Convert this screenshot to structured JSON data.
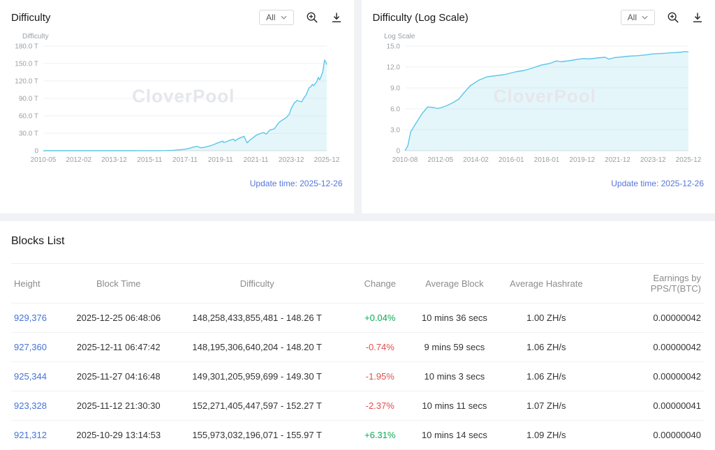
{
  "page": {
    "background_color": "#f0f2f5"
  },
  "colors": {
    "line": "#5cc6e8",
    "area_fill": "rgba(92,198,232,0.16)",
    "link": "#4573d6",
    "positive": "#0bab52",
    "negative": "#e34d4d",
    "update_time": "#5576d9",
    "watermark_color": "#e5e7ea"
  },
  "chart_data": [
    {
      "type": "area",
      "title": "Difficulty",
      "range_selector": "All",
      "ylabel": "Difficulty",
      "watermark": "CloverPool",
      "update_time": "Update time: 2025-12-26",
      "y_max": 180,
      "y_ticks": [
        {
          "v": 0,
          "label": "0"
        },
        {
          "v": 30,
          "label": "30.0 T"
        },
        {
          "v": 60,
          "label": "60.0 T"
        },
        {
          "v": 90,
          "label": "90.0 T"
        },
        {
          "v": 120,
          "label": "120.0 T"
        },
        {
          "v": 150,
          "label": "150.0 T"
        },
        {
          "v": 180,
          "label": "180.0 T"
        }
      ],
      "x_tick_labels": [
        "2010-05",
        "2012-02",
        "2013-12",
        "2015-11",
        "2017-11",
        "2019-11",
        "2021-11",
        "2023-12",
        "2025-12"
      ],
      "points_xy": [
        [
          0,
          0
        ],
        [
          0.06,
          0
        ],
        [
          0.12,
          0
        ],
        [
          0.18,
          0
        ],
        [
          0.24,
          0.01
        ],
        [
          0.3,
          0.02
        ],
        [
          0.36,
          0.1
        ],
        [
          0.4,
          0.16
        ],
        [
          0.43,
          0.3
        ],
        [
          0.46,
          0.7
        ],
        [
          0.487,
          1.9
        ],
        [
          0.5,
          2.6
        ],
        [
          0.516,
          4.3
        ],
        [
          0.53,
          6.4
        ],
        [
          0.543,
          7.5
        ],
        [
          0.554,
          5.1
        ],
        [
          0.57,
          6.1
        ],
        [
          0.585,
          7.9
        ],
        [
          0.6,
          10.2
        ],
        [
          0.612,
          12.9
        ],
        [
          0.623,
          14.7
        ],
        [
          0.633,
          16.6
        ],
        [
          0.637,
          13.9
        ],
        [
          0.655,
          17.3
        ],
        [
          0.671,
          19.9
        ],
        [
          0.676,
          16.8
        ],
        [
          0.687,
          20.6
        ],
        [
          0.703,
          23.6
        ],
        [
          0.708,
          25
        ],
        [
          0.719,
          13.5
        ],
        [
          0.729,
          18.4
        ],
        [
          0.74,
          22.3
        ],
        [
          0.751,
          26.6
        ],
        [
          0.767,
          29.9
        ],
        [
          0.777,
          31.2
        ],
        [
          0.787,
          28.6
        ],
        [
          0.799,
          35.6
        ],
        [
          0.815,
          37.6
        ],
        [
          0.831,
          48.7
        ],
        [
          0.847,
          53.9
        ],
        [
          0.858,
          57.1
        ],
        [
          0.869,
          64
        ],
        [
          0.874,
          72
        ],
        [
          0.885,
          81.7
        ],
        [
          0.895,
          86.4
        ],
        [
          0.911,
          84
        ],
        [
          0.922,
          92.7
        ],
        [
          0.927,
          95.7
        ],
        [
          0.938,
          108.5
        ],
        [
          0.944,
          110.2
        ],
        [
          0.949,
          114
        ],
        [
          0.954,
          112
        ],
        [
          0.965,
          119
        ],
        [
          0.97,
          126
        ],
        [
          0.975,
          122
        ],
        [
          0.981,
          129
        ],
        [
          0.986,
          136
        ],
        [
          0.992,
          155.97
        ],
        [
          0.997,
          152.27
        ],
        [
          1,
          148.26
        ]
      ]
    },
    {
      "type": "area",
      "title": "Difficulty (Log Scale)",
      "range_selector": "All",
      "ylabel": "Log Scale",
      "watermark": "CloverPool",
      "update_time": "Update time: 2025-12-26",
      "y_max": 15,
      "y_ticks": [
        {
          "v": 0,
          "label": "0"
        },
        {
          "v": 3,
          "label": "3.0"
        },
        {
          "v": 6,
          "label": "6.0"
        },
        {
          "v": 9,
          "label": "9.0"
        },
        {
          "v": 12,
          "label": "12.0"
        },
        {
          "v": 15,
          "label": "15.0"
        }
      ],
      "x_tick_labels": [
        "2010-08",
        "2012-05",
        "2014-02",
        "2016-01",
        "2018-01",
        "2019-12",
        "2021-12",
        "2023-12",
        "2025-12"
      ],
      "points_xy": [
        [
          0,
          0
        ],
        [
          0.01,
          0.7
        ],
        [
          0.02,
          2.7
        ],
        [
          0.04,
          4
        ],
        [
          0.06,
          5.3
        ],
        [
          0.08,
          6.28
        ],
        [
          0.1,
          6.2
        ],
        [
          0.115,
          6.05
        ],
        [
          0.13,
          6.2
        ],
        [
          0.15,
          6.5
        ],
        [
          0.17,
          6.9
        ],
        [
          0.19,
          7.4
        ],
        [
          0.21,
          8.4
        ],
        [
          0.23,
          9.3
        ],
        [
          0.26,
          10.1
        ],
        [
          0.29,
          10.6
        ],
        [
          0.32,
          10.75
        ],
        [
          0.35,
          10.9
        ],
        [
          0.39,
          11.3
        ],
        [
          0.42,
          11.5
        ],
        [
          0.45,
          11.85
        ],
        [
          0.48,
          12.27
        ],
        [
          0.51,
          12.5
        ],
        [
          0.535,
          12.87
        ],
        [
          0.55,
          12.75
        ],
        [
          0.58,
          12.9
        ],
        [
          0.61,
          13.11
        ],
        [
          0.63,
          13.2
        ],
        [
          0.65,
          13.15
        ],
        [
          0.68,
          13.3
        ],
        [
          0.705,
          13.4
        ],
        [
          0.72,
          13.13
        ],
        [
          0.74,
          13.35
        ],
        [
          0.76,
          13.42
        ],
        [
          0.79,
          13.55
        ],
        [
          0.82,
          13.62
        ],
        [
          0.85,
          13.73
        ],
        [
          0.87,
          13.86
        ],
        [
          0.89,
          13.91
        ],
        [
          0.92,
          13.97
        ],
        [
          0.935,
          14.03
        ],
        [
          0.95,
          14.06
        ],
        [
          0.97,
          14.1
        ],
        [
          0.985,
          14.19
        ],
        [
          1,
          14.17
        ]
      ]
    }
  ],
  "blocks": {
    "title": "Blocks List",
    "columns": [
      "Height",
      "Block Time",
      "Difficulty",
      "Change",
      "Average Block",
      "Average Hashrate",
      "Earnings by PPS/T(BTC)"
    ],
    "rows": [
      {
        "height": "929,376",
        "block_time": "2025-12-25 06:48:06",
        "difficulty": "148,258,433,855,481 - 148.26 T",
        "change": "+0.04%",
        "change_direction": "up",
        "average_block": "10 mins 36 secs",
        "average_hashrate": "1.00 ZH/s",
        "earnings": "0.00000042"
      },
      {
        "height": "927,360",
        "block_time": "2025-12-11 06:47:42",
        "difficulty": "148,195,306,640,204 - 148.20 T",
        "change": "-0.74%",
        "change_direction": "down",
        "average_block": "9 mins 59 secs",
        "average_hashrate": "1.06 ZH/s",
        "earnings": "0.00000042"
      },
      {
        "height": "925,344",
        "block_time": "2025-11-27 04:16:48",
        "difficulty": "149,301,205,959,699 - 149.30 T",
        "change": "-1.95%",
        "change_direction": "down",
        "average_block": "10 mins 3 secs",
        "average_hashrate": "1.06 ZH/s",
        "earnings": "0.00000042"
      },
      {
        "height": "923,328",
        "block_time": "2025-11-12 21:30:30",
        "difficulty": "152,271,405,447,597 - 152.27 T",
        "change": "-2.37%",
        "change_direction": "down",
        "average_block": "10 mins 11 secs",
        "average_hashrate": "1.07 ZH/s",
        "earnings": "0.00000041"
      },
      {
        "height": "921,312",
        "block_time": "2025-10-29 13:14:53",
        "difficulty": "155,973,032,196,071 - 155.97 T",
        "change": "+6.31%",
        "change_direction": "up",
        "average_block": "10 mins 14 secs",
        "average_hashrate": "1.09 ZH/s",
        "earnings": "0.00000040"
      }
    ]
  }
}
